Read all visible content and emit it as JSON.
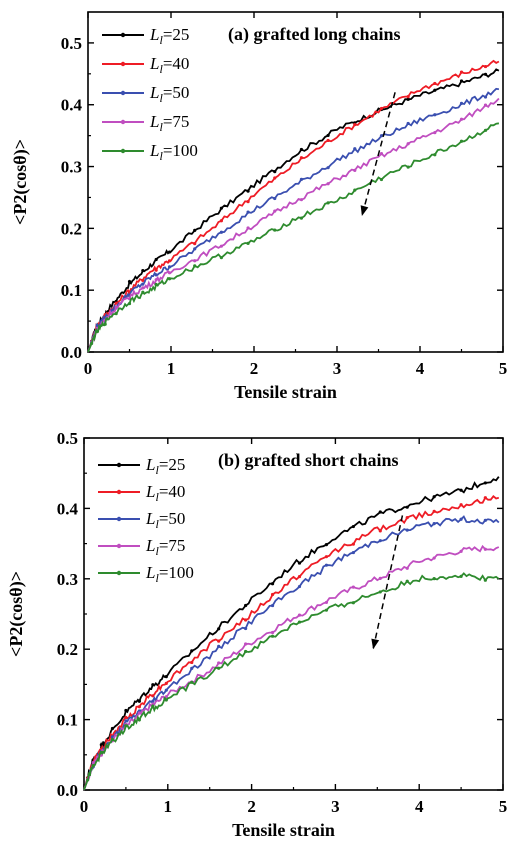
{
  "chart_data": [
    {
      "type": "line",
      "title": "(a) grafted long chains",
      "xlabel": "Tensile strain",
      "ylabel": "<P2(cosθ)>",
      "xlim": [
        0,
        5
      ],
      "ylim": [
        0,
        0.55
      ],
      "xticks": [
        "0",
        "1",
        "2",
        "3",
        "4",
        "5"
      ],
      "yticks": [
        "0.0",
        "0.1",
        "0.2",
        "0.3",
        "0.4",
        "0.5"
      ],
      "legend_position": "top-left",
      "x": [
        0,
        0.1,
        0.25,
        0.5,
        0.75,
        1,
        1.5,
        2,
        2.5,
        3,
        3.5,
        4,
        4.5,
        4.95
      ],
      "series": [
        {
          "name": "L_l=25",
          "color": "#000000",
          "values": [
            0,
            0.04,
            0.07,
            0.11,
            0.14,
            0.165,
            0.22,
            0.27,
            0.32,
            0.36,
            0.39,
            0.415,
            0.435,
            0.455
          ]
        },
        {
          "name": "L_l=40",
          "color": "#ee1c25",
          "values": [
            0,
            0.04,
            0.065,
            0.1,
            0.13,
            0.15,
            0.2,
            0.255,
            0.305,
            0.35,
            0.39,
            0.425,
            0.45,
            0.47
          ]
        },
        {
          "name": "L_l=50",
          "color": "#3a4fb0",
          "values": [
            0,
            0.038,
            0.062,
            0.095,
            0.12,
            0.14,
            0.185,
            0.23,
            0.27,
            0.31,
            0.345,
            0.375,
            0.4,
            0.425
          ]
        },
        {
          "name": "L_l=75",
          "color": "#c04ec0",
          "values": [
            0,
            0.035,
            0.06,
            0.09,
            0.11,
            0.13,
            0.165,
            0.205,
            0.245,
            0.28,
            0.315,
            0.345,
            0.375,
            0.41
          ]
        },
        {
          "name": "L_l=100",
          "color": "#2e8b2e",
          "values": [
            0,
            0.032,
            0.055,
            0.082,
            0.1,
            0.12,
            0.15,
            0.18,
            0.215,
            0.245,
            0.28,
            0.31,
            0.34,
            0.37
          ]
        }
      ],
      "arrow": {
        "from": [
          3.7,
          0.42
        ],
        "to": [
          3.3,
          0.22
        ]
      }
    },
    {
      "type": "line",
      "title": "(b) grafted short chains",
      "xlabel": "Tensile strain",
      "ylabel": "<P2(cosθ)>",
      "xlim": [
        0,
        5
      ],
      "ylim": [
        0,
        0.5
      ],
      "xticks": [
        "0",
        "1",
        "2",
        "3",
        "4",
        "5"
      ],
      "yticks": [
        "0.0",
        "0.1",
        "0.2",
        "0.3",
        "0.4",
        "0.5"
      ],
      "legend_position": "top-left",
      "x": [
        0,
        0.1,
        0.25,
        0.5,
        0.75,
        1,
        1.5,
        2,
        2.5,
        3,
        3.5,
        4,
        4.5,
        4.95
      ],
      "series": [
        {
          "name": "L_l=25",
          "color": "#000000",
          "values": [
            0,
            0.04,
            0.07,
            0.11,
            0.14,
            0.165,
            0.22,
            0.27,
            0.32,
            0.36,
            0.39,
            0.41,
            0.425,
            0.445
          ]
        },
        {
          "name": "L_l=40",
          "color": "#ee1c25",
          "values": [
            0,
            0.038,
            0.065,
            0.1,
            0.13,
            0.155,
            0.205,
            0.25,
            0.3,
            0.34,
            0.37,
            0.39,
            0.405,
            0.415
          ]
        },
        {
          "name": "L_l=50",
          "color": "#3a4fb0",
          "values": [
            0,
            0.035,
            0.06,
            0.095,
            0.12,
            0.145,
            0.19,
            0.24,
            0.285,
            0.325,
            0.355,
            0.375,
            0.385,
            0.38
          ]
        },
        {
          "name": "L_l=75",
          "color": "#c04ec0",
          "values": [
            0,
            0.035,
            0.06,
            0.09,
            0.115,
            0.135,
            0.17,
            0.21,
            0.245,
            0.275,
            0.3,
            0.325,
            0.34,
            0.345
          ]
        },
        {
          "name": "L_l=100",
          "color": "#2e8b2e",
          "values": [
            0,
            0.033,
            0.058,
            0.088,
            0.11,
            0.13,
            0.165,
            0.2,
            0.235,
            0.26,
            0.28,
            0.3,
            0.305,
            0.3
          ]
        }
      ],
      "arrow": {
        "from": [
          3.8,
          0.39
        ],
        "to": [
          3.45,
          0.2
        ]
      }
    }
  ]
}
